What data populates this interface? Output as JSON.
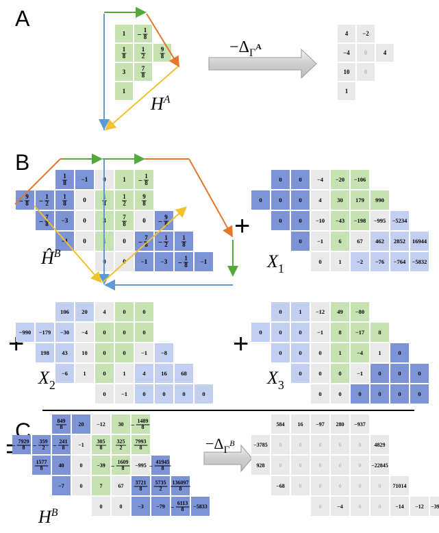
{
  "panels": {
    "A": {
      "letter": "A",
      "label_main": "H",
      "label_sup": "A",
      "arrow_label_pre": "−Δ",
      "arrow_label_sub": "Γ",
      "arrow_label_subsup": "A",
      "left_grid": {
        "colors": [
          "green"
        ],
        "rows": [
          [
            "1",
            "-1/8"
          ],
          [
            "1/8",
            "1/2",
            "9/8"
          ],
          [
            "3",
            "7/8"
          ],
          [
            "1"
          ]
        ]
      },
      "right_grid": {
        "rows": [
          [
            "4",
            "−2"
          ],
          [
            "−4",
            "0",
            "4"
          ],
          [
            "10",
            "0"
          ],
          [
            "1"
          ]
        ]
      }
    },
    "B": {
      "letter": "B",
      "label_main": "Ĥ",
      "label_sup": "B",
      "H": {
        "rows": [
          [
            [
              "b",
              "1/8"
            ],
            [
              "b",
              "−1"
            ],
            [
              "g",
              "0"
            ],
            [
              "G",
              "1"
            ],
            [
              "G",
              "-1/8"
            ]
          ],
          [
            [
              "b",
              "-9/8"
            ],
            [
              "b",
              "-1/2"
            ],
            [
              "b",
              "1/8"
            ],
            [
              "g",
              "0"
            ],
            [
              "G",
              "1/8"
            ],
            [
              "G",
              "1/2"
            ],
            [
              "G",
              "9/8"
            ]
          ],
          [
            [
              "b",
              "-7/8"
            ],
            [
              "b",
              "−3"
            ],
            [
              "g",
              "0"
            ],
            [
              "G",
              "3"
            ],
            [
              "G",
              "7/8"
            ],
            [
              "g",
              "0"
            ],
            [
              "b",
              "-9/8"
            ]
          ],
          [
            [
              "b",
              "−1"
            ],
            [
              "g",
              "0"
            ],
            [
              "G",
              "1"
            ],
            [
              "g",
              "0"
            ],
            [
              "b",
              "-7/8"
            ],
            [
              "b",
              "-1/2"
            ],
            [
              "b",
              "1/8"
            ]
          ],
          [
            [
              "g",
              "0"
            ],
            [
              "g",
              "0"
            ],
            [
              "b",
              "−1"
            ],
            [
              "b",
              "−3"
            ],
            [
              "b",
              "-1/8"
            ],
            [
              "b",
              "−1"
            ]
          ]
        ]
      },
      "X1": {
        "name": "X",
        "sub": "1",
        "rows": [
          [
            [
              "b",
              "0"
            ],
            [
              "b",
              "0"
            ],
            [
              "g",
              "−4"
            ],
            [
              "G",
              "−20"
            ],
            [
              "G",
              "−106"
            ]
          ],
          [
            [
              "b",
              "0"
            ],
            [
              "b",
              "0"
            ],
            [
              "b",
              "0"
            ],
            [
              "g",
              "4"
            ],
            [
              "G",
              "30"
            ],
            [
              "G",
              "179"
            ],
            [
              "G",
              "990"
            ]
          ],
          [
            [
              "b",
              "0"
            ],
            [
              "b",
              "0"
            ],
            [
              "g",
              "−10"
            ],
            [
              "G",
              "−43"
            ],
            [
              "G",
              "−198"
            ],
            [
              "g",
              "−995"
            ],
            [
              "l",
              "−5234"
            ]
          ],
          [
            [
              "b",
              "0"
            ],
            [
              "g",
              "−1"
            ],
            [
              "G",
              "6"
            ],
            [
              "g",
              "67"
            ],
            [
              "l",
              "462"
            ],
            [
              "l",
              "2852"
            ],
            [
              "l",
              "16944"
            ]
          ],
          [
            [
              "g",
              "0"
            ],
            [
              "g",
              "1"
            ],
            [
              "l",
              "−2"
            ],
            [
              "l",
              "−76"
            ],
            [
              "l",
              "−764"
            ],
            [
              "l",
              "−5832"
            ]
          ]
        ]
      },
      "X2": {
        "name": "X",
        "sub": "2",
        "rows": [
          [
            [
              "l",
              "106"
            ],
            [
              "l",
              "20"
            ],
            [
              "g",
              "4"
            ],
            [
              "G",
              "0"
            ],
            [
              "G",
              "0"
            ]
          ],
          [
            [
              "l",
              "−990"
            ],
            [
              "l",
              "−179"
            ],
            [
              "l",
              "−30"
            ],
            [
              "g",
              "−4"
            ],
            [
              "G",
              "0"
            ],
            [
              "G",
              "0"
            ],
            [
              "G",
              "0"
            ]
          ],
          [
            [
              "l",
              "198"
            ],
            [
              "l",
              "43"
            ],
            [
              "g",
              "10"
            ],
            [
              "G",
              "0"
            ],
            [
              "G",
              "0"
            ],
            [
              "g",
              "−1"
            ],
            [
              "l",
              "−8"
            ]
          ],
          [
            [
              "l",
              "−6"
            ],
            [
              "g",
              "1"
            ],
            [
              "G",
              "0"
            ],
            [
              "g",
              "1"
            ],
            [
              "l",
              "4"
            ],
            [
              "l",
              "16"
            ],
            [
              "l",
              "68"
            ]
          ],
          [
            [
              "g",
              "0"
            ],
            [
              "g",
              "−1"
            ],
            [
              "l",
              "0"
            ],
            [
              "l",
              "0"
            ],
            [
              "l",
              "0"
            ],
            [
              "l",
              "0"
            ]
          ]
        ]
      },
      "X3": {
        "name": "X",
        "sub": "3",
        "rows": [
          [
            [
              "l",
              "0"
            ],
            [
              "l",
              "1"
            ],
            [
              "g",
              "−12"
            ],
            [
              "G",
              "49"
            ],
            [
              "G",
              "−80"
            ]
          ],
          [
            [
              "l",
              "0"
            ],
            [
              "l",
              "0"
            ],
            [
              "l",
              "0"
            ],
            [
              "g",
              "−1"
            ],
            [
              "G",
              "8"
            ],
            [
              "G",
              "−17"
            ],
            [
              "G",
              "8"
            ]
          ],
          [
            [
              "l",
              "0"
            ],
            [
              "l",
              "0"
            ],
            [
              "g",
              "0"
            ],
            [
              "G",
              "1"
            ],
            [
              "G",
              "−4"
            ],
            [
              "g",
              "1"
            ],
            [
              "b",
              "0"
            ]
          ],
          [
            [
              "l",
              "0"
            ],
            [
              "g",
              "0"
            ],
            [
              "G",
              "0"
            ],
            [
              "g",
              "−1"
            ],
            [
              "b",
              "0"
            ],
            [
              "b",
              "0"
            ],
            [
              "b",
              "0"
            ]
          ],
          [
            [
              "g",
              "0"
            ],
            [
              "g",
              "0"
            ],
            [
              "b",
              "0"
            ],
            [
              "b",
              "0"
            ],
            [
              "b",
              "0"
            ],
            [
              "b",
              "0"
            ]
          ]
        ]
      }
    },
    "C": {
      "letter": "C",
      "label_main": "H",
      "label_sup": "B",
      "arrow_label_pre": "−Δ",
      "arrow_label_sub": "Γ",
      "arrow_label_subsup": "B",
      "H": {
        "rows": [
          [
            [
              "b",
              "849/8"
            ],
            [
              "b",
              "20"
            ],
            [
              "g",
              "−12"
            ],
            [
              "G",
              "30"
            ],
            [
              "G",
              "-1489/8"
            ]
          ],
          [
            [
              "b",
              "-7929/8"
            ],
            [
              "b",
              "-359/2"
            ],
            [
              "b",
              "-241/8"
            ],
            [
              "g",
              "−1"
            ],
            [
              "G",
              "305/8"
            ],
            [
              "G",
              "325/2"
            ],
            [
              "G",
              "7993/8"
            ]
          ],
          [
            [
              "b",
              "1577/8"
            ],
            [
              "b",
              "40"
            ],
            [
              "g",
              "0"
            ],
            [
              "G",
              "−39"
            ],
            [
              "G",
              "-1609/8"
            ],
            [
              "g",
              "−995"
            ],
            [
              "b",
              "-41945/8"
            ]
          ],
          [
            [
              "b",
              "−7"
            ],
            [
              "g",
              "0"
            ],
            [
              "G",
              "7"
            ],
            [
              "g",
              "67"
            ],
            [
              "b",
              "3721/8"
            ],
            [
              "b",
              "5735/2"
            ],
            [
              "b",
              "136097/8"
            ]
          ],
          [
            [
              "g",
              "0"
            ],
            [
              "g",
              "0"
            ],
            [
              "b",
              "−3"
            ],
            [
              "b",
              "−79"
            ],
            [
              "b",
              "-6113/8"
            ],
            [
              "b",
              "−5833"
            ]
          ]
        ]
      },
      "result": {
        "rows": [
          [
            [
              "d",
              "584"
            ],
            [
              "d",
              "16"
            ],
            [
              "d",
              "−97"
            ],
            [
              "d",
              "280"
            ],
            [
              "d",
              "−937"
            ]
          ],
          [
            [
              "d",
              "−3785"
            ],
            [
              "d",
              "0"
            ],
            [
              "d",
              "0"
            ],
            [
              "d",
              "0"
            ],
            [
              "d",
              "0"
            ],
            [
              "d",
              "0"
            ],
            [
              "d",
              "4829"
            ]
          ],
          [
            [
              "d",
              "928"
            ],
            [
              "d",
              "0"
            ],
            [
              "d",
              "0"
            ],
            [
              "d",
              "0"
            ],
            [
              "d",
              "0"
            ],
            [
              "d",
              "0"
            ],
            [
              "d",
              "−22845"
            ]
          ],
          [
            [
              "d",
              "−68"
            ],
            [
              "d",
              "0"
            ],
            [
              "d",
              "0"
            ],
            [
              "d",
              "0"
            ],
            [
              "d",
              "0"
            ],
            [
              "d",
              "0"
            ],
            [
              "d",
              "71014"
            ]
          ],
          [
            [
              "d",
              "0"
            ],
            [
              "d",
              "−4"
            ],
            [
              "d",
              "0"
            ],
            [
              "d",
              "0"
            ],
            [
              "d",
              "−14"
            ],
            [
              "d",
              "−12"
            ],
            [
              "d",
              "−39580"
            ]
          ]
        ]
      }
    }
  },
  "operators": {
    "plus": "+",
    "equals": "="
  },
  "colors": {
    "blue": "#7c93d6",
    "light_blue": "#c3cff0",
    "green": "#c7e2b2",
    "gray": "#e9e9e9",
    "dark_gray": "#d9d9d9",
    "line_green": "#57a83a",
    "line_orange": "#e3762b",
    "line_blue": "#5b9bd5",
    "line_yellow": "#f2c12e"
  }
}
